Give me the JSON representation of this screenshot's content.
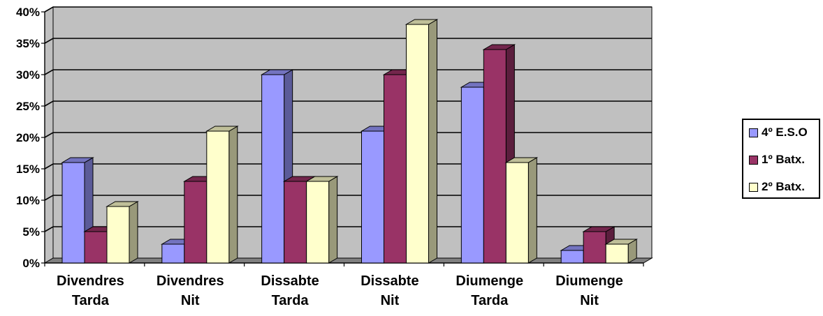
{
  "chart_data": {
    "type": "bar",
    "style": "3d-clustered-column",
    "title": "",
    "xlabel": "",
    "ylabel": "",
    "categories": [
      [
        "Divendres",
        "Tarda"
      ],
      [
        "Divendres",
        "Nit"
      ],
      [
        "Dissabte",
        "Tarda"
      ],
      [
        "Dissabte",
        "Nit"
      ],
      [
        "Diumenge",
        "Tarda"
      ],
      [
        "Diumenge",
        "Nit"
      ]
    ],
    "series": [
      {
        "name": "4º E.S.O",
        "values": [
          16,
          3,
          30,
          21,
          28,
          2
        ],
        "color": "#9999ff",
        "side_color": "#5b5b99",
        "top_color": "#7373bf"
      },
      {
        "name": "1º Batx.",
        "values": [
          5,
          13,
          13,
          30,
          34,
          5
        ],
        "color": "#993366",
        "side_color": "#5b1e3d",
        "top_color": "#73264c"
      },
      {
        "name": "2º Batx.",
        "values": [
          9,
          21,
          13,
          38,
          16,
          3
        ],
        "color": "#ffffcc",
        "side_color": "#99997a",
        "top_color": "#bfbf99"
      }
    ],
    "ylim": [
      0,
      40
    ],
    "yticks": [
      "0%",
      "5%",
      "10%",
      "15%",
      "20%",
      "25%",
      "30%",
      "35%",
      "40%"
    ],
    "ytick_values": [
      0,
      5,
      10,
      15,
      20,
      25,
      30,
      35,
      40
    ],
    "grid": true,
    "legend_position": "right",
    "colors": {
      "plot_back_wall": "#c0c0c0",
      "plot_floor": "#808080",
      "gridline": "#000000"
    }
  }
}
